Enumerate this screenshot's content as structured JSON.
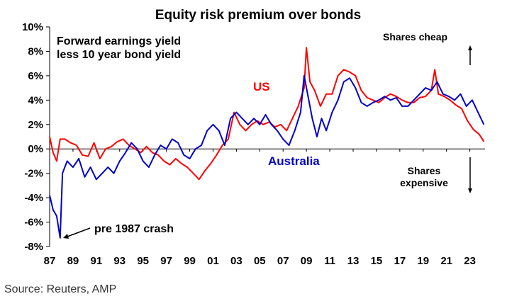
{
  "chart_data": {
    "type": "line",
    "title": "Equity risk premium over bonds",
    "subtitle": [
      "Forward earnings yield",
      "less 10 year bond yield"
    ],
    "ylim": [
      -8,
      10
    ],
    "xlim": [
      1987,
      2024.3
    ],
    "y_ticks": [
      "10%",
      "8%",
      "6%",
      "4%",
      "2%",
      "0%",
      "-2%",
      "-4%",
      "-6%",
      "-8%"
    ],
    "x_ticks": [
      "87",
      "89",
      "91",
      "93",
      "95",
      "97",
      "99",
      "01",
      "03",
      "05",
      "07",
      "09",
      "11",
      "13",
      "15",
      "17",
      "19",
      "21",
      "23"
    ],
    "grid": false,
    "series": [
      {
        "name": "US",
        "color": "#ff0000",
        "points": [
          [
            1987.0,
            1.0
          ],
          [
            1987.3,
            -0.3
          ],
          [
            1987.6,
            -1.0
          ],
          [
            1987.9,
            0.8
          ],
          [
            1988.3,
            0.8
          ],
          [
            1988.8,
            0.5
          ],
          [
            1989.3,
            0.3
          ],
          [
            1989.8,
            -0.5
          ],
          [
            1990.3,
            -0.6
          ],
          [
            1990.8,
            0.5
          ],
          [
            1991.3,
            -0.8
          ],
          [
            1991.8,
            0.0
          ],
          [
            1992.3,
            0.2
          ],
          [
            1992.8,
            0.6
          ],
          [
            1993.3,
            0.8
          ],
          [
            1993.8,
            0.3
          ],
          [
            1994.3,
            0.0
          ],
          [
            1994.8,
            -0.3
          ],
          [
            1995.3,
            0.2
          ],
          [
            1995.8,
            -0.3
          ],
          [
            1996.3,
            -0.5
          ],
          [
            1996.8,
            -1.0
          ],
          [
            1997.3,
            -1.3
          ],
          [
            1997.8,
            -0.8
          ],
          [
            1998.3,
            -1.2
          ],
          [
            1998.8,
            -1.5
          ],
          [
            1999.3,
            -2.0
          ],
          [
            1999.8,
            -2.5
          ],
          [
            2000.3,
            -1.8
          ],
          [
            2000.8,
            -1.2
          ],
          [
            2001.3,
            -0.5
          ],
          [
            2001.8,
            0.3
          ],
          [
            2002.3,
            0.8
          ],
          [
            2002.8,
            3.0
          ],
          [
            2003.3,
            2.0
          ],
          [
            2003.8,
            1.5
          ],
          [
            2004.3,
            2.0
          ],
          [
            2004.8,
            2.3
          ],
          [
            2005.3,
            2.0
          ],
          [
            2005.8,
            2.2
          ],
          [
            2006.3,
            1.8
          ],
          [
            2006.8,
            2.0
          ],
          [
            2007.3,
            1.5
          ],
          [
            2007.8,
            2.5
          ],
          [
            2008.3,
            3.5
          ],
          [
            2008.8,
            5.0
          ],
          [
            2009.0,
            8.3
          ],
          [
            2009.3,
            5.5
          ],
          [
            2009.7,
            4.8
          ],
          [
            2010.2,
            3.5
          ],
          [
            2010.7,
            4.5
          ],
          [
            2011.2,
            4.5
          ],
          [
            2011.7,
            6.0
          ],
          [
            2012.2,
            6.5
          ],
          [
            2012.7,
            6.3
          ],
          [
            2013.2,
            6.0
          ],
          [
            2013.7,
            4.8
          ],
          [
            2014.2,
            4.2
          ],
          [
            2014.7,
            4.0
          ],
          [
            2015.2,
            3.8
          ],
          [
            2015.7,
            4.2
          ],
          [
            2016.2,
            4.5
          ],
          [
            2016.7,
            4.3
          ],
          [
            2017.2,
            4.0
          ],
          [
            2017.7,
            3.8
          ],
          [
            2018.2,
            3.8
          ],
          [
            2018.7,
            4.2
          ],
          [
            2019.2,
            4.3
          ],
          [
            2019.7,
            4.8
          ],
          [
            2020.0,
            6.5
          ],
          [
            2020.3,
            4.5
          ],
          [
            2020.8,
            4.3
          ],
          [
            2021.3,
            4.0
          ],
          [
            2021.8,
            3.6
          ],
          [
            2022.3,
            3.3
          ],
          [
            2022.8,
            2.3
          ],
          [
            2023.3,
            1.6
          ],
          [
            2023.8,
            1.2
          ],
          [
            2024.2,
            0.6
          ]
        ]
      },
      {
        "name": "Australia",
        "color": "#0000cc",
        "points": [
          [
            1987.0,
            -3.8
          ],
          [
            1987.3,
            -5.0
          ],
          [
            1987.6,
            -5.5
          ],
          [
            1987.9,
            -7.3
          ],
          [
            1988.1,
            -2.0
          ],
          [
            1988.5,
            -1.0
          ],
          [
            1989.0,
            -1.5
          ],
          [
            1989.5,
            -0.8
          ],
          [
            1990.0,
            -2.3
          ],
          [
            1990.5,
            -1.5
          ],
          [
            1991.0,
            -2.5
          ],
          [
            1991.5,
            -2.0
          ],
          [
            1992.0,
            -1.5
          ],
          [
            1992.5,
            -2.0
          ],
          [
            1993.0,
            -1.0
          ],
          [
            1993.5,
            -0.3
          ],
          [
            1994.0,
            0.5
          ],
          [
            1994.5,
            0.0
          ],
          [
            1995.0,
            -1.0
          ],
          [
            1995.5,
            -1.5
          ],
          [
            1996.0,
            -0.5
          ],
          [
            1996.5,
            0.3
          ],
          [
            1997.0,
            0.0
          ],
          [
            1997.5,
            0.8
          ],
          [
            1998.0,
            0.5
          ],
          [
            1998.5,
            -0.5
          ],
          [
            1999.0,
            -0.8
          ],
          [
            1999.5,
            0.0
          ],
          [
            2000.0,
            0.3
          ],
          [
            2000.5,
            1.5
          ],
          [
            2001.0,
            2.0
          ],
          [
            2001.5,
            1.5
          ],
          [
            2002.0,
            0.3
          ],
          [
            2002.5,
            2.5
          ],
          [
            2003.0,
            3.0
          ],
          [
            2003.5,
            2.5
          ],
          [
            2004.0,
            2.0
          ],
          [
            2004.5,
            2.5
          ],
          [
            2005.0,
            2.0
          ],
          [
            2005.5,
            2.8
          ],
          [
            2006.0,
            2.0
          ],
          [
            2006.5,
            1.5
          ],
          [
            2007.0,
            0.8
          ],
          [
            2007.5,
            0.3
          ],
          [
            2008.0,
            1.5
          ],
          [
            2008.5,
            3.0
          ],
          [
            2008.8,
            6.0
          ],
          [
            2009.1,
            4.5
          ],
          [
            2009.5,
            2.5
          ],
          [
            2009.9,
            1.0
          ],
          [
            2010.3,
            2.5
          ],
          [
            2010.7,
            1.5
          ],
          [
            2011.2,
            3.0
          ],
          [
            2011.7,
            4.0
          ],
          [
            2012.2,
            5.5
          ],
          [
            2012.7,
            5.8
          ],
          [
            2013.2,
            5.0
          ],
          [
            2013.7,
            3.8
          ],
          [
            2014.2,
            3.5
          ],
          [
            2014.7,
            3.8
          ],
          [
            2015.2,
            4.0
          ],
          [
            2015.7,
            4.3
          ],
          [
            2016.2,
            4.0
          ],
          [
            2016.7,
            4.2
          ],
          [
            2017.2,
            3.5
          ],
          [
            2017.7,
            3.5
          ],
          [
            2018.2,
            4.0
          ],
          [
            2018.7,
            4.5
          ],
          [
            2019.2,
            5.0
          ],
          [
            2019.7,
            4.8
          ],
          [
            2020.2,
            5.5
          ],
          [
            2020.7,
            4.5
          ],
          [
            2021.2,
            4.3
          ],
          [
            2021.7,
            4.0
          ],
          [
            2022.2,
            4.5
          ],
          [
            2022.7,
            3.5
          ],
          [
            2023.2,
            4.0
          ],
          [
            2023.7,
            3.0
          ],
          [
            2024.2,
            2.0
          ]
        ]
      }
    ],
    "annotations": {
      "us_label": "US",
      "australia_label": "Australia",
      "cheap_label": "Shares cheap",
      "expensive_line1": "Shares",
      "expensive_line2": "expensive",
      "crash_label": "pre 1987 crash"
    }
  },
  "source": "Source: Reuters, AMP"
}
